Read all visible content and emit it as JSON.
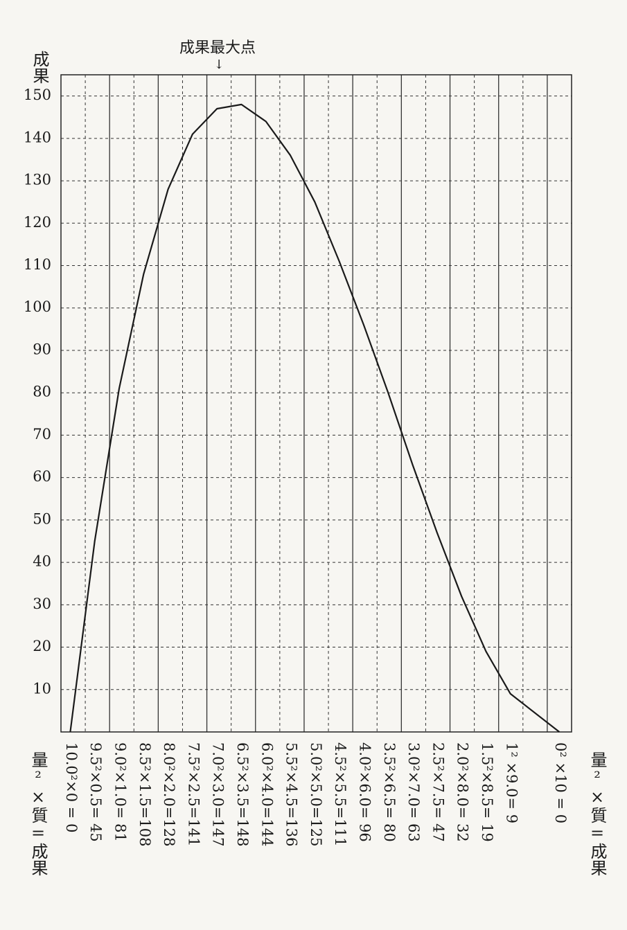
{
  "chart_data": {
    "type": "line",
    "ylabel": "成果",
    "annotation": "成果最大点",
    "annotation_arrow": "↓",
    "xlabel_left": "量²×質=成果",
    "xlabel_right": "量²×質=成果",
    "x": [
      10,
      9.5,
      9,
      8.5,
      8,
      7.5,
      7,
      6.5,
      6,
      5.5,
      5,
      4.5,
      4,
      3.5,
      3,
      2.5,
      2,
      1.5,
      1,
      0
    ],
    "categories": [
      "10.0²×0 = 0",
      "9.5²×0.5= 45",
      "9.0²×1.0= 81",
      "8.5²×1.5=108",
      "8.0²×2.0=128",
      "7.5²×2.5=141",
      "7.0²×3.0=147",
      "6.5²×3.5=148",
      "6.0²×4.0=144",
      "5.5²×4.5=136",
      "5.0²×5.0=125",
      "4.5²×5.5=111",
      "4.0²×6.0= 96",
      "3.5²×6.5= 80",
      "3.0²×7.0= 63",
      "2.5²×7.5= 47",
      "2.0²×8.0= 32",
      "1.5²×8.5= 19",
      "1² ×9.0= 9",
      "0² ×10 = 0"
    ],
    "values": [
      0,
      45,
      81,
      108,
      128,
      141,
      147,
      148,
      144,
      136,
      125,
      111,
      96,
      80,
      63,
      47,
      32,
      19,
      9,
      0
    ],
    "color": "#1a1a1a",
    "xlim": [
      10.19,
      -0.25
    ],
    "ylim": [
      0,
      155
    ],
    "yticks": [
      10,
      20,
      30,
      40,
      50,
      60,
      70,
      80,
      90,
      100,
      110,
      120,
      130,
      140,
      150
    ],
    "grid": true
  }
}
